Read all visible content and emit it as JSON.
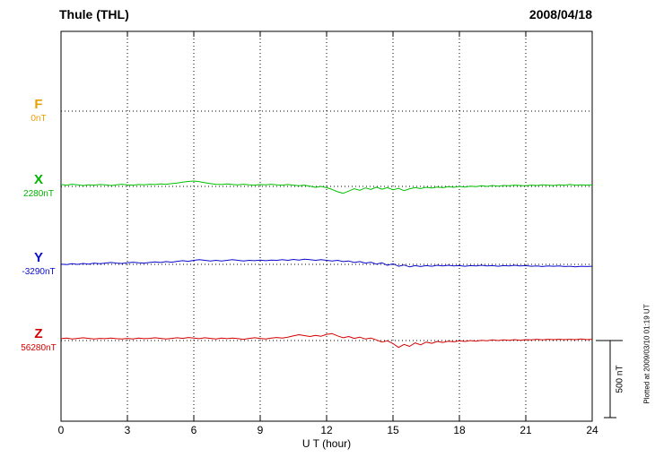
{
  "header": {
    "title": "Thule (THL)",
    "date": "2008/04/18"
  },
  "axis": {
    "xlabel": "U T (hour)",
    "ticks": [
      "0",
      "3",
      "6",
      "9",
      "12",
      "15",
      "18",
      "21",
      "24"
    ]
  },
  "scale_bar": {
    "label": "500 nT",
    "span_nT": 500
  },
  "footer_note": "Plotted at 2009/03/10 01:19 UT",
  "chart_data": {
    "type": "line",
    "title": "Thule (THL) magnetogram 2008/04/18",
    "xlabel": "U T (hour)",
    "x_range": [
      0,
      24
    ],
    "x_step_hours": 0.25,
    "grid": "dotted vertical every 3 hours, dotted horizontal at each component baseline",
    "scale_nT_per_division": 500,
    "series": [
      {
        "name": "F",
        "label": "F",
        "value_label": "0nT",
        "baseline_nT": 0,
        "color": "#e8a000",
        "values": []
      },
      {
        "name": "X",
        "label": "X",
        "value_label": "2280nT",
        "baseline_nT": 2280,
        "color": "#00c000",
        "values": [
          12,
          8,
          14,
          10,
          6,
          10,
          8,
          12,
          10,
          6,
          10,
          14,
          10,
          8,
          12,
          10,
          14,
          12,
          16,
          14,
          18,
          22,
          28,
          32,
          35,
          30,
          24,
          18,
          14,
          12,
          16,
          12,
          10,
          14,
          10,
          8,
          12,
          10,
          14,
          10,
          8,
          12,
          8,
          4,
          8,
          2,
          -6,
          0,
          -8,
          -20,
          -35,
          -45,
          -30,
          -15,
          -25,
          -10,
          -20,
          -5,
          -18,
          -8,
          -22,
          -12,
          -28,
          -15,
          -8,
          -14,
          -6,
          -10,
          -4,
          -8,
          -2,
          -6,
          0,
          -4,
          2,
          -2,
          4,
          0,
          6,
          2,
          6,
          4,
          8,
          6,
          4,
          8,
          6,
          10,
          8,
          6,
          10,
          8,
          12,
          8,
          10,
          8,
          10
        ]
      },
      {
        "name": "Y",
        "label": "Y",
        "value_label": "-3290nT",
        "baseline_nT": -3290,
        "color": "#0a0acc",
        "values": [
          2,
          -2,
          4,
          0,
          6,
          2,
          8,
          4,
          8,
          12,
          8,
          6,
          10,
          14,
          10,
          8,
          12,
          16,
          12,
          18,
          14,
          20,
          24,
          20,
          26,
          30,
          26,
          22,
          26,
          22,
          26,
          30,
          26,
          22,
          26,
          24,
          28,
          24,
          28,
          26,
          30,
          26,
          32,
          28,
          34,
          30,
          26,
          30,
          26,
          22,
          26,
          18,
          22,
          12,
          18,
          8,
          14,
          2,
          10,
          -6,
          4,
          -12,
          -4,
          -16,
          -8,
          -14,
          -8,
          -12,
          -6,
          -10,
          -6,
          -10,
          -8,
          -12,
          -8,
          -10,
          -6,
          -10,
          -8,
          -12,
          -8,
          -10,
          -6,
          -10,
          -8,
          -12,
          -10,
          -14,
          -10,
          -12,
          -10,
          -14,
          -12,
          -16,
          -12,
          -14,
          -12
        ]
      },
      {
        "name": "Z",
        "label": "Z",
        "value_label": "56280nT",
        "baseline_nT": 56280,
        "color": "#d40000",
        "values": [
          12,
          16,
          10,
          14,
          18,
          14,
          10,
          14,
          12,
          16,
          12,
          10,
          14,
          10,
          16,
          12,
          14,
          18,
          14,
          10,
          14,
          18,
          14,
          20,
          16,
          12,
          18,
          14,
          10,
          16,
          12,
          16,
          12,
          8,
          14,
          18,
          14,
          10,
          16,
          20,
          16,
          22,
          30,
          38,
          32,
          26,
          34,
          28,
          40,
          45,
          30,
          18,
          26,
          14,
          22,
          10,
          16,
          4,
          -10,
          -2,
          -20,
          -45,
          -25,
          -38,
          -15,
          -28,
          -10,
          -18,
          -6,
          -12,
          -4,
          -8,
          -2,
          -6,
          0,
          -4,
          2,
          -2,
          4,
          0,
          4,
          2,
          6,
          2,
          6,
          4,
          8,
          4,
          8,
          6,
          8,
          6,
          8,
          6,
          10,
          6,
          8
        ]
      }
    ]
  }
}
